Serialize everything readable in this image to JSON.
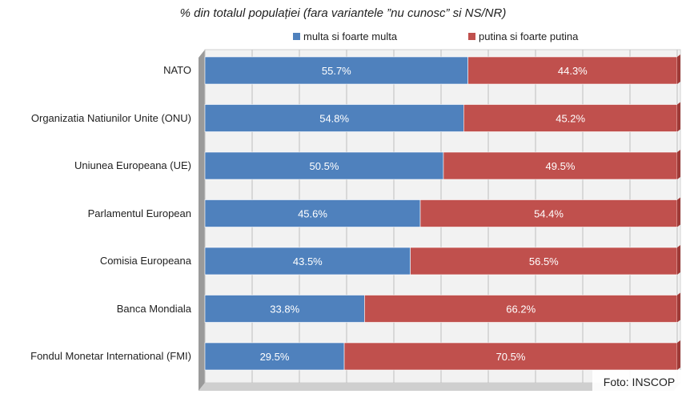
{
  "chart_data": {
    "type": "bar",
    "orientation": "horizontal",
    "stacked": true,
    "title": "% din totalul populației (fara variantele ”nu cunosc” si NS/NR)",
    "categories": [
      "NATO",
      "Organizatia Natiunilor Unite (ONU)",
      "Uniunea Europeana (UE)",
      "Parlamentul European",
      "Comisia Europeana",
      "Banca Mondiala",
      "Fondul Monetar International (FMI)"
    ],
    "series": [
      {
        "name": "multa si foarte multa",
        "color": "#4f81bd",
        "values": [
          55.7,
          54.8,
          50.5,
          45.6,
          43.5,
          33.8,
          29.5
        ]
      },
      {
        "name": "putina si foarte putina",
        "color": "#c0504d",
        "values": [
          44.3,
          45.2,
          49.5,
          54.4,
          56.5,
          66.2,
          70.5
        ]
      }
    ],
    "value_suffix": "%",
    "xlim": [
      0,
      100
    ],
    "grid": true,
    "legend_position": "top"
  },
  "watermark": "Foto: INSCOP"
}
